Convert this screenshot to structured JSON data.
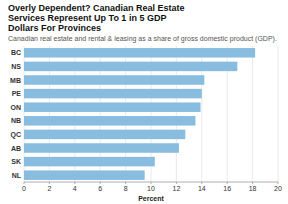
{
  "chart_data": {
    "type": "bar",
    "orientation": "horizontal",
    "title": "Overly Dependent? Canadian Real Estate\nServices Represent Up To 1 in 5 GDP\nDollars For Provinces",
    "subtitle": "Canadian real estate and rental & leasing as a share of gross domestic product (GDP).",
    "x_label": "Percent",
    "categories": [
      "NL",
      "SK",
      "AB",
      "QC",
      "NB",
      "ON",
      "PE",
      "MB",
      "NS",
      "BC"
    ],
    "values": [
      9.5,
      10.3,
      12.2,
      12.7,
      13.5,
      13.9,
      14.0,
      14.2,
      16.8,
      18.2
    ],
    "color": "#88bde0",
    "xlim": [
      0,
      20
    ],
    "xticks": [
      0,
      2,
      4,
      6,
      8,
      10,
      12,
      14,
      16,
      18,
      20
    ],
    "grid": true
  }
}
